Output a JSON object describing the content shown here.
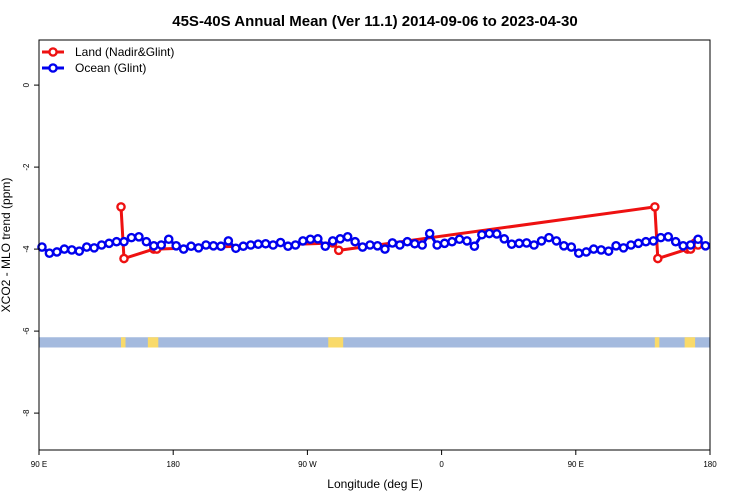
{
  "chart_data": {
    "type": "line",
    "title": "45S-40S Annual Mean (Ver 11.1)   2014-09-06 to 2023-04-30",
    "xlabel": "Longitude (deg E)",
    "ylabel": "XCO2 - MLO trend (ppm)",
    "xlim": [
      90,
      540
    ],
    "ylim": [
      -8.9,
      1.1
    ],
    "x_ticks": [
      {
        "value": 90,
        "label": "90 E"
      },
      {
        "value": 180,
        "label": "180"
      },
      {
        "value": 270,
        "label": "90 W"
      },
      {
        "value": 360,
        "label": "0"
      },
      {
        "value": 450,
        "label": "90 E"
      },
      {
        "value": 540,
        "label": "180"
      }
    ],
    "y_ticks": [
      {
        "value": 0,
        "label": "0"
      },
      {
        "value": -2,
        "label": "-2"
      },
      {
        "value": -4,
        "label": "-4"
      },
      {
        "value": -6,
        "label": "-6"
      },
      {
        "value": -8,
        "label": "-8"
      }
    ],
    "legend_position": "top-left",
    "series": [
      {
        "name": "Land (Nadir&Glint)",
        "color": "#ee1111",
        "x": [
          145,
          147,
          167,
          169,
          287,
          291,
          503,
          505,
          525,
          527,
          530,
          532
        ],
        "y": [
          -2.97,
          -4.23,
          -4.0,
          -4.0,
          -3.85,
          -4.03,
          -2.97,
          -4.23,
          -4.0,
          -4.0,
          -3.85,
          -3.9
        ]
      },
      {
        "name": "Ocean (Glint)",
        "color": "#0000ee",
        "x": [
          92,
          97,
          102,
          107,
          112,
          117,
          122,
          127,
          132,
          137,
          142,
          147,
          152,
          157,
          162,
          167,
          172,
          177,
          182,
          187,
          192,
          197,
          202,
          207,
          212,
          217,
          222,
          227,
          232,
          237,
          242,
          247,
          252,
          257,
          262,
          267,
          272,
          277,
          282,
          287,
          292,
          297,
          302,
          307,
          312,
          317,
          322,
          327,
          332,
          337,
          342,
          347,
          352,
          357,
          362,
          367,
          372,
          377,
          382,
          387,
          392,
          397,
          402,
          407,
          412,
          417,
          422,
          427,
          432,
          437,
          442,
          447,
          452,
          457,
          462,
          467,
          472,
          477,
          482,
          487,
          492,
          497,
          502,
          507,
          512,
          517,
          522,
          527,
          532,
          537
        ],
        "y": [
          -3.95,
          -4.1,
          -4.07,
          -4.0,
          -4.02,
          -4.05,
          -3.95,
          -3.97,
          -3.9,
          -3.86,
          -3.82,
          -3.82,
          -3.72,
          -3.7,
          -3.82,
          -3.92,
          -3.9,
          -3.76,
          -3.92,
          -4.0,
          -3.93,
          -3.97,
          -3.9,
          -3.92,
          -3.93,
          -3.8,
          -3.98,
          -3.93,
          -3.9,
          -3.88,
          -3.87,
          -3.9,
          -3.84,
          -3.93,
          -3.9,
          -3.8,
          -3.76,
          -3.75,
          -3.93,
          -3.8,
          -3.75,
          -3.7,
          -3.82,
          -3.95,
          -3.9,
          -3.92,
          -4.0,
          -3.85,
          -3.9,
          -3.82,
          -3.87,
          -3.9,
          -3.62,
          -3.9,
          -3.86,
          -3.82,
          -3.76,
          -3.8,
          -3.93,
          -3.65,
          -3.62,
          -3.63,
          -3.75,
          -3.88,
          -3.86,
          -3.85,
          -3.9,
          -3.8,
          -3.72,
          -3.8,
          -3.92,
          -3.95,
          -4.1,
          -4.07,
          -4.0,
          -4.02,
          -4.05,
          -3.92,
          -3.97,
          -3.9,
          -3.86,
          -3.82,
          -3.8,
          -3.72,
          -3.7,
          -3.82,
          -3.92,
          -3.9,
          -3.76,
          -3.92
        ]
      }
    ],
    "land_mask": {
      "y_range": [
        -6.4,
        -6.15
      ],
      "ocean_color": "#a4bade",
      "land_color": "#f9da6a",
      "land_spans": [
        [
          145,
          148
        ],
        [
          163,
          170
        ],
        [
          284,
          294
        ],
        [
          503,
          506
        ],
        [
          523,
          530
        ]
      ]
    }
  }
}
